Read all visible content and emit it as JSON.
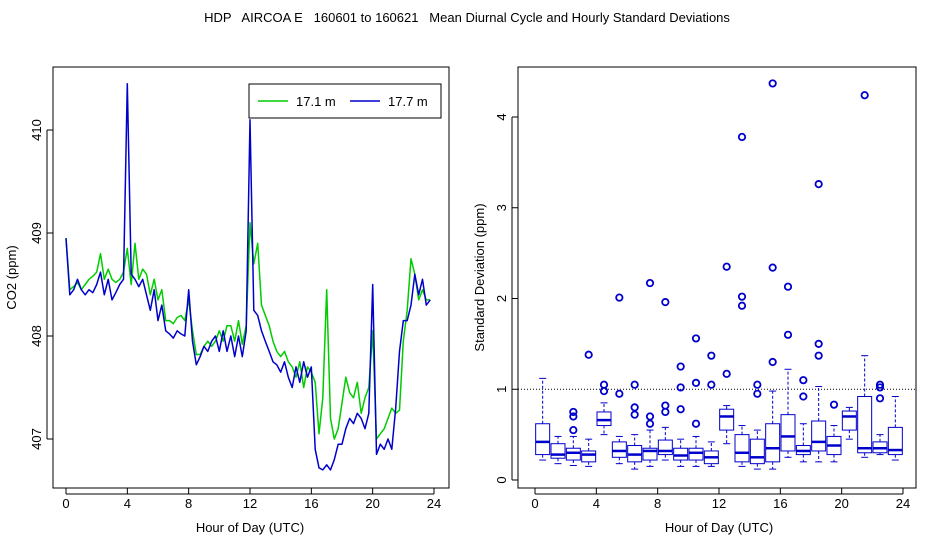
{
  "figure": {
    "title": "HDP   AIRCOA E   160601 to 160621   Mean Diurnal Cycle and Hourly Standard Deviations"
  },
  "chart_data": [
    {
      "type": "line",
      "xlabel": "Hour of Day (UTC)",
      "ylabel": "CO2 (ppm)",
      "xlim": [
        0,
        24
      ],
      "ylim": [
        406.5,
        410.5
      ],
      "xticks": [
        "0",
        "4",
        "8",
        "12",
        "16",
        "20",
        "24"
      ],
      "yticks": [
        "407",
        "408",
        "409",
        "410"
      ],
      "legend": {
        "position": "top-right",
        "entries": [
          "17.1 m",
          "17.7 m"
        ]
      },
      "series": [
        {
          "name": "17.1 m",
          "color": "#00cc00",
          "x": [
            0.0,
            0.25,
            0.5,
            0.75,
            1.0,
            1.25,
            1.5,
            1.75,
            2.0,
            2.25,
            2.5,
            2.75,
            3.0,
            3.25,
            3.5,
            3.75,
            4.0,
            4.25,
            4.5,
            4.75,
            5.0,
            5.25,
            5.5,
            5.75,
            6.0,
            6.25,
            6.5,
            6.75,
            7.0,
            7.25,
            7.5,
            7.75,
            8.0,
            8.25,
            8.5,
            8.75,
            9.0,
            9.25,
            9.5,
            9.75,
            10.0,
            10.25,
            10.5,
            10.75,
            11.0,
            11.25,
            11.5,
            11.75,
            12.0,
            12.25,
            12.5,
            12.75,
            13.0,
            13.25,
            13.5,
            13.75,
            14.0,
            14.25,
            14.5,
            14.75,
            15.0,
            15.25,
            15.5,
            15.75,
            16.0,
            16.25,
            16.5,
            16.75,
            17.0,
            17.25,
            17.5,
            17.75,
            18.0,
            18.25,
            18.5,
            18.75,
            19.0,
            19.25,
            19.5,
            19.75,
            20.0,
            20.25,
            20.5,
            20.75,
            21.0,
            21.25,
            21.5,
            21.75,
            22.0,
            22.25,
            22.5,
            22.75,
            23.0,
            23.25,
            23.5,
            23.75
          ],
          "values": [
            408.95,
            408.45,
            408.48,
            408.52,
            408.45,
            408.5,
            408.55,
            408.58,
            408.62,
            408.8,
            408.55,
            408.65,
            408.55,
            408.52,
            408.55,
            408.62,
            408.85,
            408.5,
            408.9,
            408.55,
            408.65,
            408.6,
            408.4,
            408.55,
            408.35,
            408.45,
            408.15,
            408.15,
            408.12,
            408.18,
            408.2,
            408.15,
            408.35,
            408.05,
            407.82,
            407.82,
            407.9,
            407.95,
            407.9,
            407.95,
            408.05,
            407.95,
            408.1,
            408.1,
            407.95,
            408.15,
            407.92,
            408.1,
            409.1,
            408.7,
            408.9,
            408.3,
            408.2,
            408.1,
            407.95,
            407.85,
            407.8,
            407.85,
            407.75,
            407.7,
            407.6,
            407.75,
            407.5,
            407.7,
            407.65,
            407.55,
            407.05,
            407.4,
            408.45,
            407.2,
            407.0,
            407.1,
            407.35,
            407.6,
            407.45,
            407.4,
            407.55,
            407.25,
            407.4,
            407.5,
            408.05,
            407.0,
            407.05,
            407.1,
            407.2,
            407.3,
            407.25,
            407.28,
            407.95,
            408.25,
            408.75,
            408.6,
            408.35,
            408.45,
            408.35,
            408.35
          ]
        },
        {
          "name": "17.7 m",
          "color": "#0000cc",
          "x": [
            0.0,
            0.25,
            0.5,
            0.75,
            1.0,
            1.25,
            1.5,
            1.75,
            2.0,
            2.25,
            2.5,
            2.75,
            3.0,
            3.25,
            3.5,
            3.75,
            4.0,
            4.25,
            4.5,
            4.75,
            5.0,
            5.25,
            5.5,
            5.75,
            6.0,
            6.25,
            6.5,
            6.75,
            7.0,
            7.25,
            7.5,
            7.75,
            8.0,
            8.25,
            8.5,
            8.75,
            9.0,
            9.25,
            9.5,
            9.75,
            10.0,
            10.25,
            10.5,
            10.75,
            11.0,
            11.25,
            11.5,
            11.75,
            12.0,
            12.25,
            12.5,
            12.75,
            13.0,
            13.25,
            13.5,
            13.75,
            14.0,
            14.25,
            14.5,
            14.75,
            15.0,
            15.25,
            15.5,
            15.75,
            16.0,
            16.25,
            16.5,
            16.75,
            17.0,
            17.25,
            17.5,
            17.75,
            18.0,
            18.25,
            18.5,
            18.75,
            19.0,
            19.25,
            19.5,
            19.75,
            20.0,
            20.25,
            20.5,
            20.75,
            21.0,
            21.25,
            21.5,
            21.75,
            22.0,
            22.25,
            22.5,
            22.75,
            23.0,
            23.25,
            23.5,
            23.75
          ],
          "values": [
            408.95,
            408.4,
            408.45,
            408.55,
            408.45,
            408.4,
            408.45,
            408.42,
            408.5,
            408.62,
            408.4,
            408.55,
            408.35,
            408.42,
            408.5,
            408.55,
            410.45,
            408.6,
            408.55,
            408.48,
            408.55,
            408.4,
            408.25,
            408.45,
            408.15,
            408.3,
            408.05,
            408.02,
            407.98,
            408.05,
            408.02,
            408.0,
            408.45,
            407.95,
            407.72,
            407.8,
            407.9,
            407.85,
            407.95,
            408.0,
            407.85,
            408.05,
            407.85,
            408.0,
            407.8,
            408.0,
            407.8,
            408.05,
            410.1,
            408.25,
            408.2,
            408.05,
            407.95,
            407.85,
            407.75,
            407.72,
            407.65,
            407.75,
            407.6,
            407.5,
            407.7,
            407.55,
            407.75,
            407.6,
            407.7,
            406.9,
            406.72,
            406.7,
            406.75,
            406.7,
            406.8,
            406.95,
            406.95,
            407.1,
            407.2,
            407.15,
            407.25,
            407.2,
            407.1,
            407.25,
            408.5,
            406.85,
            406.95,
            406.9,
            407.0,
            406.9,
            407.3,
            407.85,
            408.15,
            408.15,
            408.3,
            408.6,
            408.4,
            408.55,
            408.3,
            408.35
          ]
        }
      ]
    },
    {
      "type": "box",
      "xlabel": "Hour of Day (UTC)",
      "ylabel": "Standard Deviation (ppm)",
      "xlim": [
        0,
        24
      ],
      "ylim": [
        0,
        4.5
      ],
      "xticks": [
        "0",
        "4",
        "8",
        "12",
        "16",
        "20",
        "24"
      ],
      "yticks": [
        "0",
        "1",
        "2",
        "3",
        "4"
      ],
      "reference_line": 1.0,
      "color": "#0000cc",
      "boxes": [
        {
          "hour": 0.5,
          "lo": 0.22,
          "q1": 0.28,
          "med": 0.42,
          "q3": 0.62,
          "hi": 1.12,
          "out": []
        },
        {
          "hour": 1.5,
          "lo": 0.18,
          "q1": 0.24,
          "med": 0.28,
          "q3": 0.4,
          "hi": 0.48,
          "out": []
        },
        {
          "hour": 2.5,
          "lo": 0.16,
          "q1": 0.22,
          "med": 0.3,
          "q3": 0.35,
          "hi": 0.48,
          "out": [
            0.55,
            0.7,
            0.75
          ]
        },
        {
          "hour": 3.5,
          "lo": 0.15,
          "q1": 0.2,
          "med": 0.28,
          "q3": 0.32,
          "hi": 0.45,
          "out": [
            1.38
          ]
        },
        {
          "hour": 4.5,
          "lo": 0.5,
          "q1": 0.6,
          "med": 0.66,
          "q3": 0.75,
          "hi": 0.85,
          "out": [
            0.98,
            1.05
          ]
        },
        {
          "hour": 5.5,
          "lo": 0.18,
          "q1": 0.25,
          "med": 0.32,
          "q3": 0.42,
          "hi": 0.48,
          "out": [
            0.95,
            2.01
          ]
        },
        {
          "hour": 6.5,
          "lo": 0.12,
          "q1": 0.2,
          "med": 0.28,
          "q3": 0.38,
          "hi": 0.5,
          "out": [
            0.72,
            0.8,
            1.05
          ]
        },
        {
          "hour": 7.5,
          "lo": 0.15,
          "q1": 0.22,
          "med": 0.32,
          "q3": 0.35,
          "hi": 0.55,
          "out": [
            0.62,
            0.7,
            2.17
          ]
        },
        {
          "hour": 8.5,
          "lo": 0.22,
          "q1": 0.28,
          "med": 0.32,
          "q3": 0.44,
          "hi": 0.58,
          "out": [
            0.75,
            0.82,
            1.96
          ]
        },
        {
          "hour": 9.5,
          "lo": 0.15,
          "q1": 0.22,
          "med": 0.27,
          "q3": 0.35,
          "hi": 0.45,
          "out": [
            0.78,
            1.02,
            1.25
          ]
        },
        {
          "hour": 10.5,
          "lo": 0.15,
          "q1": 0.22,
          "med": 0.3,
          "q3": 0.35,
          "hi": 0.48,
          "out": [
            0.62,
            1.07,
            1.56
          ]
        },
        {
          "hour": 11.5,
          "lo": 0.15,
          "q1": 0.18,
          "med": 0.25,
          "q3": 0.32,
          "hi": 0.42,
          "out": [
            1.05,
            1.37
          ]
        },
        {
          "hour": 12.5,
          "lo": 0.4,
          "q1": 0.55,
          "med": 0.7,
          "q3": 0.78,
          "hi": 0.82,
          "out": [
            1.17,
            2.35
          ]
        },
        {
          "hour": 13.5,
          "lo": 0.15,
          "q1": 0.2,
          "med": 0.3,
          "q3": 0.5,
          "hi": 0.6,
          "out": [
            1.92,
            2.02,
            3.78
          ]
        },
        {
          "hour": 14.5,
          "lo": 0.12,
          "q1": 0.18,
          "med": 0.25,
          "q3": 0.45,
          "hi": 0.55,
          "out": [
            0.95,
            1.05
          ]
        },
        {
          "hour": 15.5,
          "lo": 0.12,
          "q1": 0.2,
          "med": 0.35,
          "q3": 0.62,
          "hi": 0.98,
          "out": [
            1.3,
            2.34,
            4.37
          ]
        },
        {
          "hour": 16.5,
          "lo": 0.25,
          "q1": 0.32,
          "med": 0.48,
          "q3": 0.72,
          "hi": 1.22,
          "out": [
            1.6,
            2.13
          ]
        },
        {
          "hour": 17.5,
          "lo": 0.2,
          "q1": 0.28,
          "med": 0.32,
          "q3": 0.38,
          "hi": 0.62,
          "out": [
            0.92,
            1.1
          ]
        },
        {
          "hour": 18.5,
          "lo": 0.2,
          "q1": 0.32,
          "med": 0.42,
          "q3": 0.65,
          "hi": 1.03,
          "out": [
            1.37,
            1.5,
            3.26
          ]
        },
        {
          "hour": 19.5,
          "lo": 0.2,
          "q1": 0.28,
          "med": 0.38,
          "q3": 0.48,
          "hi": 0.6,
          "out": [
            0.83
          ]
        },
        {
          "hour": 20.5,
          "lo": 0.45,
          "q1": 0.55,
          "med": 0.7,
          "q3": 0.76,
          "hi": 0.8,
          "out": []
        },
        {
          "hour": 21.5,
          "lo": 0.25,
          "q1": 0.3,
          "med": 0.35,
          "q3": 0.92,
          "hi": 1.37,
          "out": [
            4.24
          ]
        },
        {
          "hour": 22.5,
          "lo": 0.28,
          "q1": 0.3,
          "med": 0.35,
          "q3": 0.42,
          "hi": 0.5,
          "out": [
            0.9,
            1.02,
            1.05
          ]
        },
        {
          "hour": 23.5,
          "lo": 0.22,
          "q1": 0.28,
          "med": 0.33,
          "q3": 0.58,
          "hi": 0.92,
          "out": []
        }
      ]
    }
  ]
}
